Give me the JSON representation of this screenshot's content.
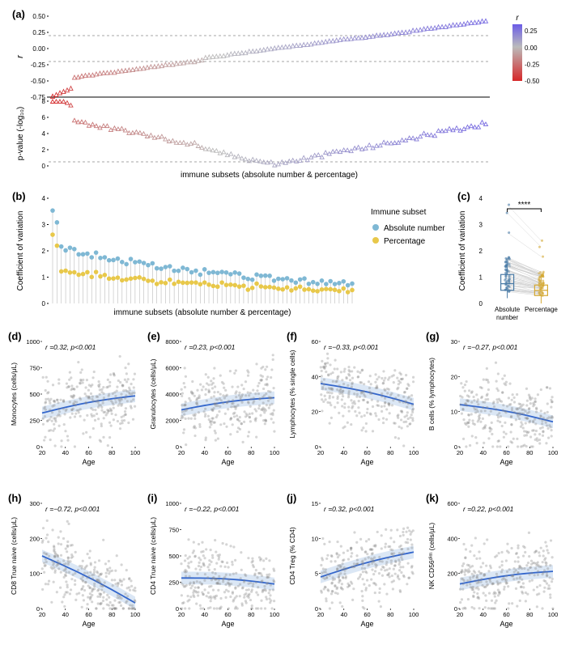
{
  "panelA": {
    "label": "(a)",
    "top": {
      "ylabel": "r",
      "ylim": [
        -0.75,
        0.5
      ],
      "yticks": [
        -0.75,
        -0.5,
        -0.25,
        0.0,
        0.25,
        0.5
      ],
      "dashed_lines": [
        -0.2,
        0.2
      ],
      "solid_line": -0.75
    },
    "bottom": {
      "ylabel": "p-value (-log₁₀)",
      "ylim": [
        0,
        8
      ],
      "yticks": [
        0,
        2,
        4,
        6,
        8
      ],
      "dashed_line": 0.5
    },
    "xlabel": "immune subsets (absolute number & percentage)",
    "n_points": 120,
    "colorbar": {
      "title": "r",
      "ticks": [
        -0.5,
        -0.25,
        0.0,
        0.25
      ],
      "color_low": "#d62728",
      "color_mid": "#bbbbbb",
      "color_high": "#6b5ce7"
    }
  },
  "panelB": {
    "label": "(b)",
    "ylabel": "Coefficient of variation",
    "xlabel": "immune subsets (absolute number & percentage)",
    "ylim": [
      0,
      4
    ],
    "yticks": [
      0,
      1,
      2,
      3,
      4
    ],
    "n_subsets": 70,
    "legend_title": "Immune subset",
    "series": [
      {
        "label": "Absolute number",
        "color": "#7fb8d4"
      },
      {
        "label": "Percentage",
        "color": "#e8c84a"
      }
    ]
  },
  "panelC": {
    "label": "(c)",
    "ylabel": "Coefficient of variation",
    "ylim": [
      0,
      4
    ],
    "yticks": [
      0,
      1,
      2,
      3,
      4
    ],
    "categories": [
      "Absolute\nnumber",
      "Percentage"
    ],
    "colors": [
      "#4a7ba6",
      "#d4a934"
    ],
    "sig_label": "****",
    "box1": {
      "q1": 0.5,
      "med": 0.75,
      "q3": 1.1
    },
    "box2": {
      "q1": 0.3,
      "med": 0.5,
      "q3": 0.7
    }
  },
  "scatter_common": {
    "xlabel": "Age",
    "xlim": [
      20,
      100
    ],
    "xticks": [
      20,
      40,
      60,
      80,
      100
    ],
    "point_color": "#888888",
    "point_opacity": 0.35,
    "line_color": "#3366cc",
    "band_color": "#b8d0ec",
    "n_points": 280
  },
  "panels_scatter": [
    {
      "label": "(d)",
      "ylabel": "Monocytes (cells/μL)",
      "ylim": [
        0,
        1000
      ],
      "yticks": [
        0,
        250,
        500,
        750,
        1000
      ],
      "r": 0.32,
      "p": "<0.001",
      "trend": "up",
      "y_start": 320,
      "y_end": 480
    },
    {
      "label": "(e)",
      "ylabel": "Granulocytes (cells/μL)",
      "ylim": [
        0,
        8000
      ],
      "yticks": [
        0,
        2000,
        4000,
        6000,
        8000
      ],
      "r": 0.23,
      "p": "<0.001",
      "trend": "up",
      "y_start": 2800,
      "y_end": 3700
    },
    {
      "label": "(f)",
      "ylabel": "Lymphocytes (% single cells)",
      "ylim": [
        0,
        60
      ],
      "yticks": [
        0,
        20,
        40,
        60
      ],
      "r": -0.33,
      "p": "<0.001",
      "trend": "down",
      "y_start": 36,
      "y_end": 24
    },
    {
      "label": "(g)",
      "ylabel": "B cells (% lymphocytes)",
      "ylim": [
        0,
        30
      ],
      "yticks": [
        0,
        10,
        20,
        30
      ],
      "r": -0.27,
      "p": "<0.001",
      "trend": "down",
      "y_start": 12,
      "y_end": 7
    },
    {
      "label": "(h)",
      "ylabel": "CD8 True naive (cells/μL)",
      "ylim": [
        0,
        300
      ],
      "yticks": [
        0,
        100,
        200,
        300
      ],
      "r": -0.72,
      "p": "<0.001",
      "trend": "down",
      "y_start": 150,
      "y_end": 15
    },
    {
      "label": "(i)",
      "ylabel": "CD4 True naive (cells/μL)",
      "ylim": [
        0,
        1000
      ],
      "yticks": [
        0,
        250,
        500,
        750,
        1000
      ],
      "r": -0.22,
      "p": "<0.001",
      "trend": "down",
      "y_start": 290,
      "y_end": 230
    },
    {
      "label": "(j)",
      "ylabel": "CD4 Treg (% CD4)",
      "ylim": [
        0,
        15
      ],
      "yticks": [
        0,
        5,
        10,
        15
      ],
      "r": 0.32,
      "p": "<0.001",
      "trend": "up",
      "y_start": 4.5,
      "y_end": 8
    },
    {
      "label": "(k)",
      "ylabel": "NK CD56ᵈⁱᵐ (cells/μL)",
      "ylim": [
        0,
        600
      ],
      "yticks": [
        0,
        200,
        400,
        600
      ],
      "r": 0.22,
      "p": "<0.001",
      "trend": "up",
      "y_start": 140,
      "y_end": 210
    }
  ]
}
